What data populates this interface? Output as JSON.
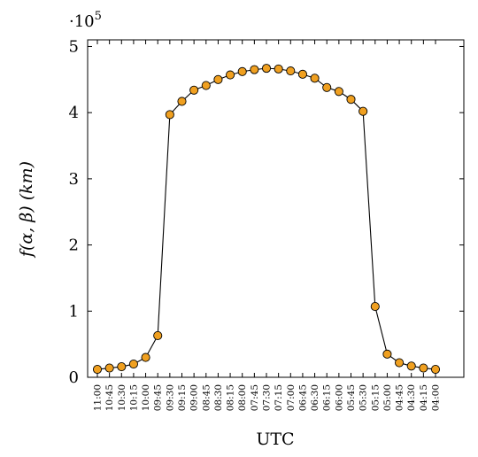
{
  "chart_data": {
    "type": "line",
    "xlabel": "UTC",
    "ylabel": "f(α, β) (km)",
    "y_multiplier_label": "·10",
    "y_multiplier_exponent": "5",
    "ylim": [
      0,
      5.1
    ],
    "yticks": [
      0,
      1,
      2,
      3,
      4,
      5
    ],
    "grid": false,
    "marker_color": "#f0a020",
    "line_color": "#000000",
    "x": [
      "11:00",
      "10:45",
      "10:30",
      "10:15",
      "10:00",
      "09:45",
      "09:30",
      "09:15",
      "09:00",
      "08:45",
      "08:30",
      "08:15",
      "08:00",
      "07:45",
      "07:30",
      "07:15",
      "07:00",
      "06:45",
      "06:30",
      "06:15",
      "06:00",
      "05:45",
      "05:30",
      "05:15",
      "05:00",
      "04:45",
      "04:30",
      "04:15",
      "04:00"
    ],
    "series": [
      {
        "values": [
          0.12,
          0.14,
          0.16,
          0.2,
          0.3,
          0.63,
          3.97,
          4.17,
          4.34,
          4.41,
          4.5,
          4.57,
          4.62,
          4.65,
          4.67,
          4.66,
          4.63,
          4.58,
          4.52,
          4.38,
          4.32,
          4.2,
          4.02,
          1.07,
          0.35,
          0.22,
          0.17,
          0.14,
          0.12
        ]
      }
    ]
  }
}
